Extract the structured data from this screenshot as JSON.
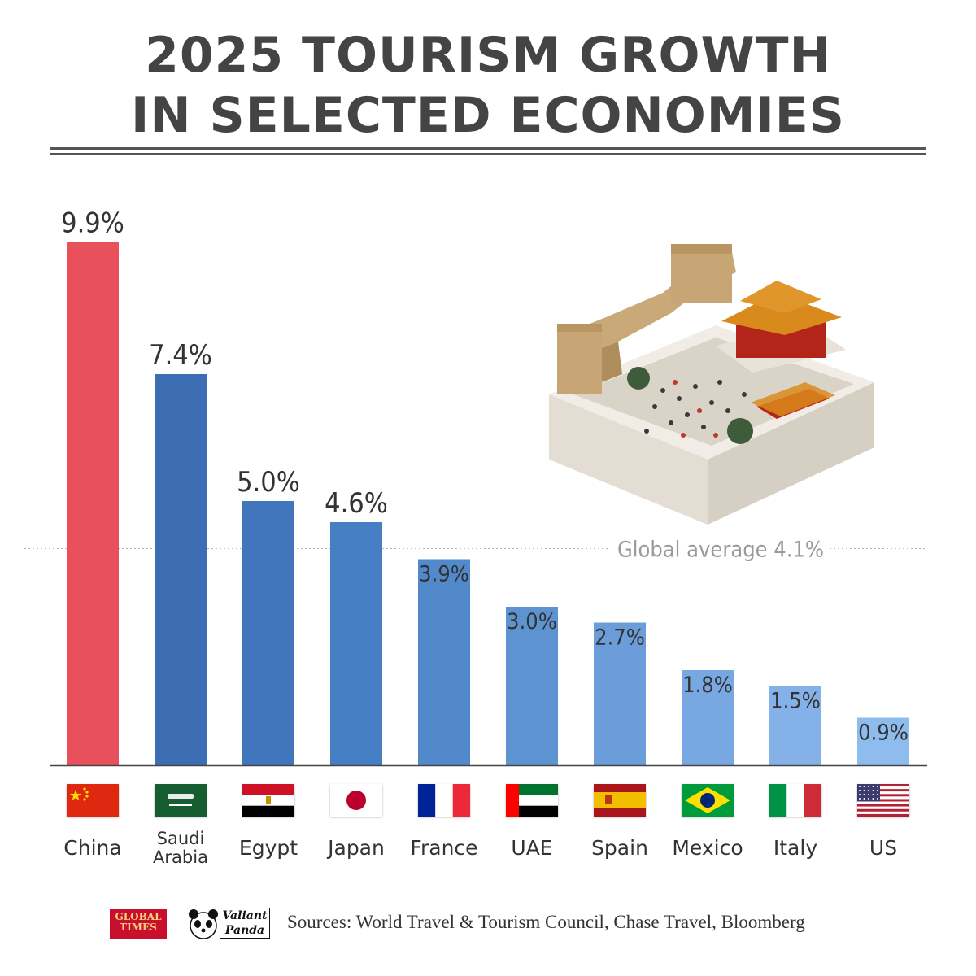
{
  "header": {
    "title_line1": "2025 TOURISM GROWTH",
    "title_line2": "IN SELECTED ECONOMIES"
  },
  "chart_data": {
    "type": "bar",
    "title": "2025 TOURISM GROWTH IN SELECTED ECONOMIES",
    "categories": [
      "China",
      "Saudi Arabia",
      "Egypt",
      "Japan",
      "France",
      "UAE",
      "Spain",
      "Mexico",
      "Italy",
      "US"
    ],
    "values": [
      9.9,
      7.4,
      5.0,
      4.6,
      3.9,
      3.0,
      2.7,
      1.8,
      1.5,
      0.9
    ],
    "value_labels": [
      "9.9%",
      "7.4%",
      "5.0%",
      "4.6%",
      "3.9%",
      "3.0%",
      "2.7%",
      "1.8%",
      "1.5%",
      "0.9%"
    ],
    "category_lines": [
      [
        "China"
      ],
      [
        "Saudi",
        "Arabia"
      ],
      [
        "Egypt"
      ],
      [
        "Japan"
      ],
      [
        "France"
      ],
      [
        "UAE"
      ],
      [
        "Spain"
      ],
      [
        "Mexico"
      ],
      [
        "Italy"
      ],
      [
        "US"
      ]
    ],
    "flags": [
      "china-flag-icon",
      "saudi-arabia-flag-icon",
      "egypt-flag-icon",
      "japan-flag-icon",
      "france-flag-icon",
      "uae-flag-icon",
      "spain-flag-icon",
      "mexico-flag-icon",
      "italy-flag-icon",
      "us-flag-icon"
    ],
    "bar_colors": [
      "#e8505b",
      "#3d6eb4",
      "#4176bc",
      "#467ec3",
      "#5289cb",
      "#5e93d2",
      "#6a9dda",
      "#78a8e1",
      "#84b2e8",
      "#8fbcee"
    ],
    "ylim": [
      0,
      10
    ],
    "reference_line": {
      "value": 4.1,
      "label": "Global average 4.1%"
    },
    "grid": false,
    "legend": "none"
  },
  "footer": {
    "logo_global_times_line1": "GLOBAL",
    "logo_global_times_line2": "TIMES",
    "logo_valiant_line1": "Valiant",
    "logo_valiant_line2": "Panda",
    "sources": "Sources: World Travel & Tourism Council, Chase Travel, Bloomberg"
  }
}
